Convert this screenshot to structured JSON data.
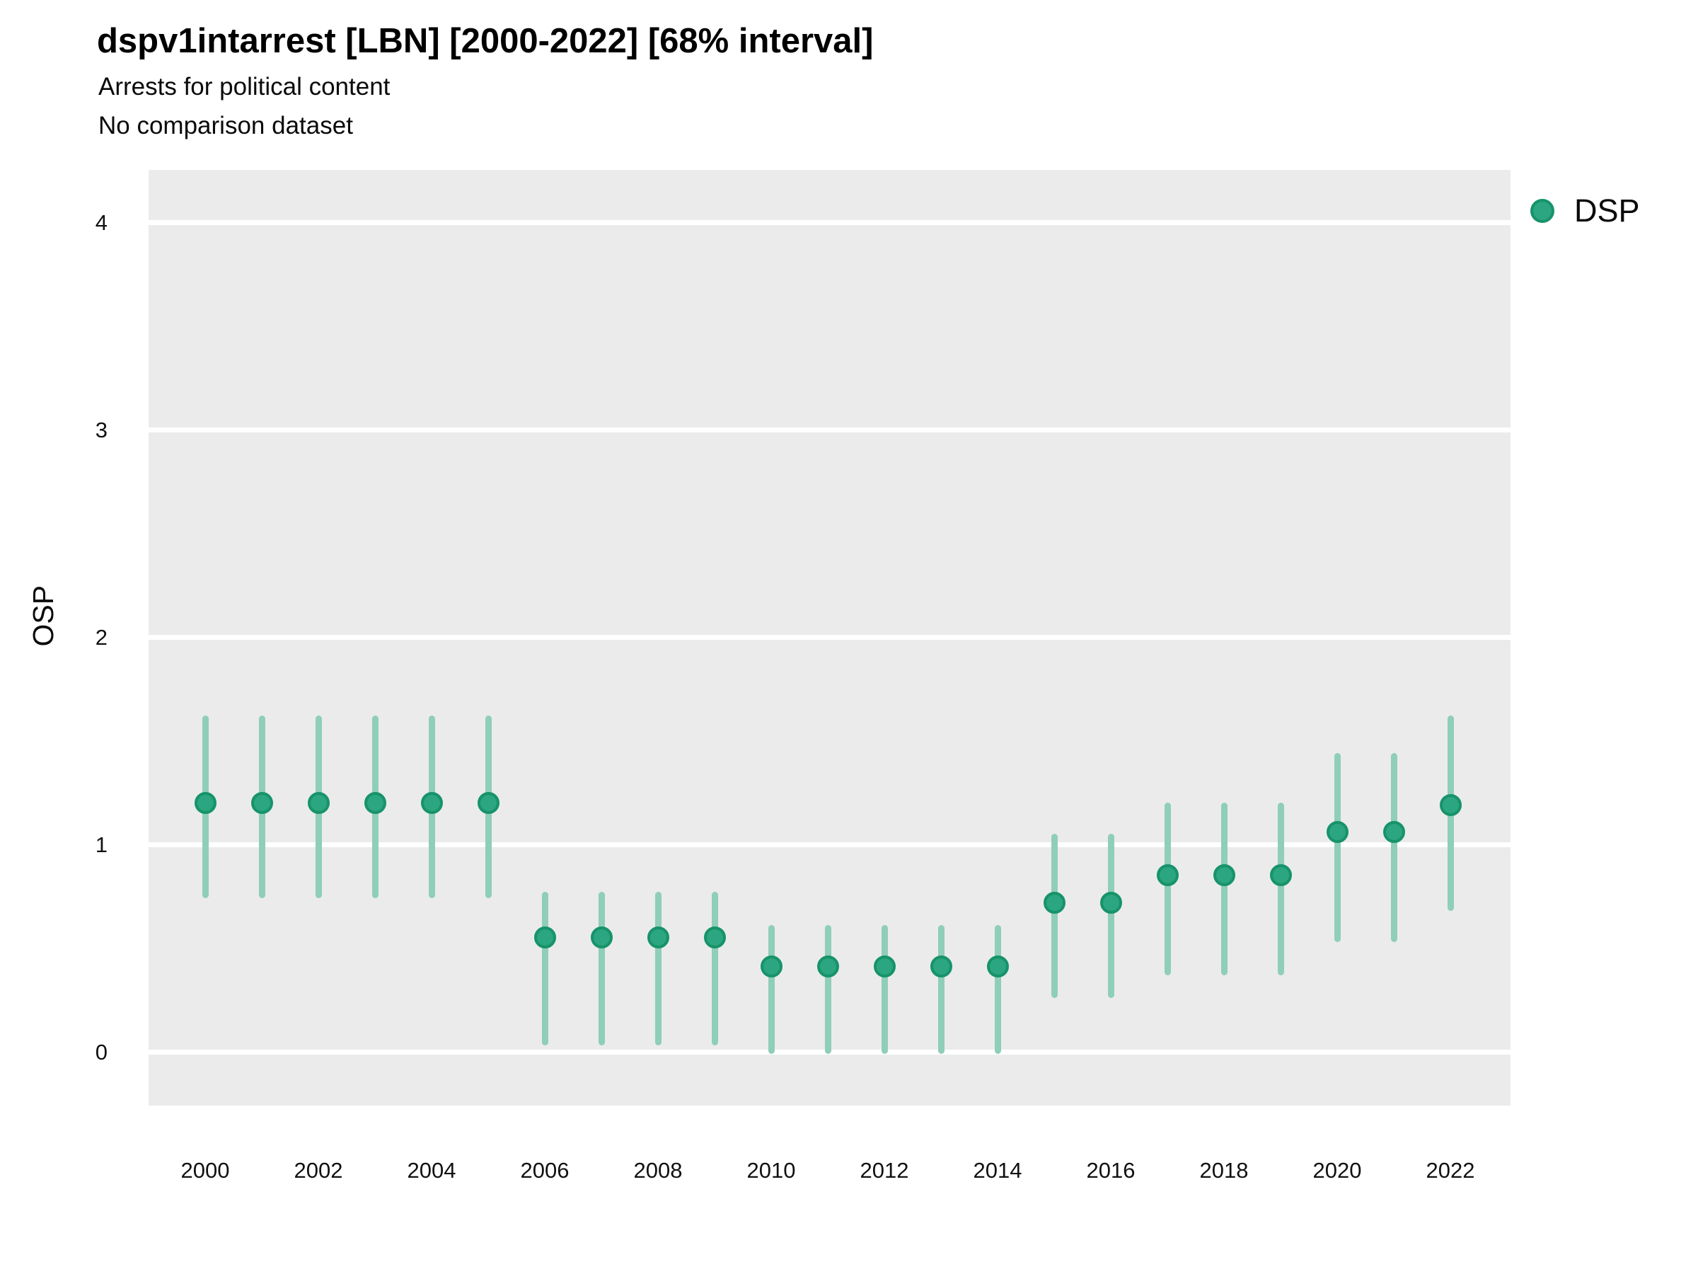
{
  "header": {
    "title": "dspv1intarrest [LBN] [2000-2022] [68% interval]",
    "subtitle1": "Arrests for political content",
    "subtitle2": "No comparison dataset"
  },
  "legend": {
    "label": "DSP",
    "marker": "circle-icon"
  },
  "colors": {
    "point_fill": "#2CA581",
    "point_stroke": "#17936A",
    "interval_bar": "#8FCEB9",
    "panel_bg": "#EBEBEB",
    "gridline": "#FFFFFF",
    "text": "#000000"
  },
  "chart_data": {
    "type": "scatter",
    "title": "dspv1intarrest [LBN] [2000-2022] [68% interval]",
    "subtitle": [
      "Arrests for political content",
      "No comparison dataset"
    ],
    "xlabel": "",
    "ylabel": "OSP",
    "interval_note": "68% interval",
    "legend_position": "right-top",
    "grid": "major-horizontal-white-on-gray",
    "x_ticks": [
      2000,
      2002,
      2004,
      2006,
      2008,
      2010,
      2012,
      2014,
      2016,
      2018,
      2020,
      2022
    ],
    "y_ticks": [
      0,
      1,
      2,
      3,
      4
    ],
    "xlim": [
      1999,
      2023.1
    ],
    "ylim": [
      -0.26,
      4.25
    ],
    "series": [
      {
        "name": "DSP",
        "points": [
          {
            "year": 2000,
            "value": 1.2,
            "lo": 0.74,
            "hi": 1.62
          },
          {
            "year": 2001,
            "value": 1.2,
            "lo": 0.74,
            "hi": 1.62
          },
          {
            "year": 2002,
            "value": 1.2,
            "lo": 0.74,
            "hi": 1.62
          },
          {
            "year": 2003,
            "value": 1.2,
            "lo": 0.74,
            "hi": 1.62
          },
          {
            "year": 2004,
            "value": 1.2,
            "lo": 0.74,
            "hi": 1.62
          },
          {
            "year": 2005,
            "value": 1.2,
            "lo": 0.74,
            "hi": 1.62
          },
          {
            "year": 2006,
            "value": 0.55,
            "lo": 0.03,
            "hi": 0.77
          },
          {
            "year": 2007,
            "value": 0.55,
            "lo": 0.03,
            "hi": 0.77
          },
          {
            "year": 2008,
            "value": 0.55,
            "lo": 0.03,
            "hi": 0.77
          },
          {
            "year": 2009,
            "value": 0.55,
            "lo": 0.03,
            "hi": 0.77
          },
          {
            "year": 2010,
            "value": 0.41,
            "lo": -0.01,
            "hi": 0.61
          },
          {
            "year": 2011,
            "value": 0.41,
            "lo": -0.01,
            "hi": 0.61
          },
          {
            "year": 2012,
            "value": 0.41,
            "lo": -0.01,
            "hi": 0.61
          },
          {
            "year": 2013,
            "value": 0.41,
            "lo": -0.01,
            "hi": 0.61
          },
          {
            "year": 2014,
            "value": 0.41,
            "lo": -0.01,
            "hi": 0.61
          },
          {
            "year": 2015,
            "value": 0.72,
            "lo": 0.26,
            "hi": 1.05
          },
          {
            "year": 2016,
            "value": 0.72,
            "lo": 0.26,
            "hi": 1.05
          },
          {
            "year": 2017,
            "value": 0.85,
            "lo": 0.37,
            "hi": 1.2
          },
          {
            "year": 2018,
            "value": 0.85,
            "lo": 0.37,
            "hi": 1.2
          },
          {
            "year": 2019,
            "value": 0.85,
            "lo": 0.37,
            "hi": 1.2
          },
          {
            "year": 2020,
            "value": 1.06,
            "lo": 0.53,
            "hi": 1.44
          },
          {
            "year": 2021,
            "value": 1.06,
            "lo": 0.53,
            "hi": 1.44
          },
          {
            "year": 2022,
            "value": 1.19,
            "lo": 0.68,
            "hi": 1.62
          }
        ]
      }
    ]
  }
}
